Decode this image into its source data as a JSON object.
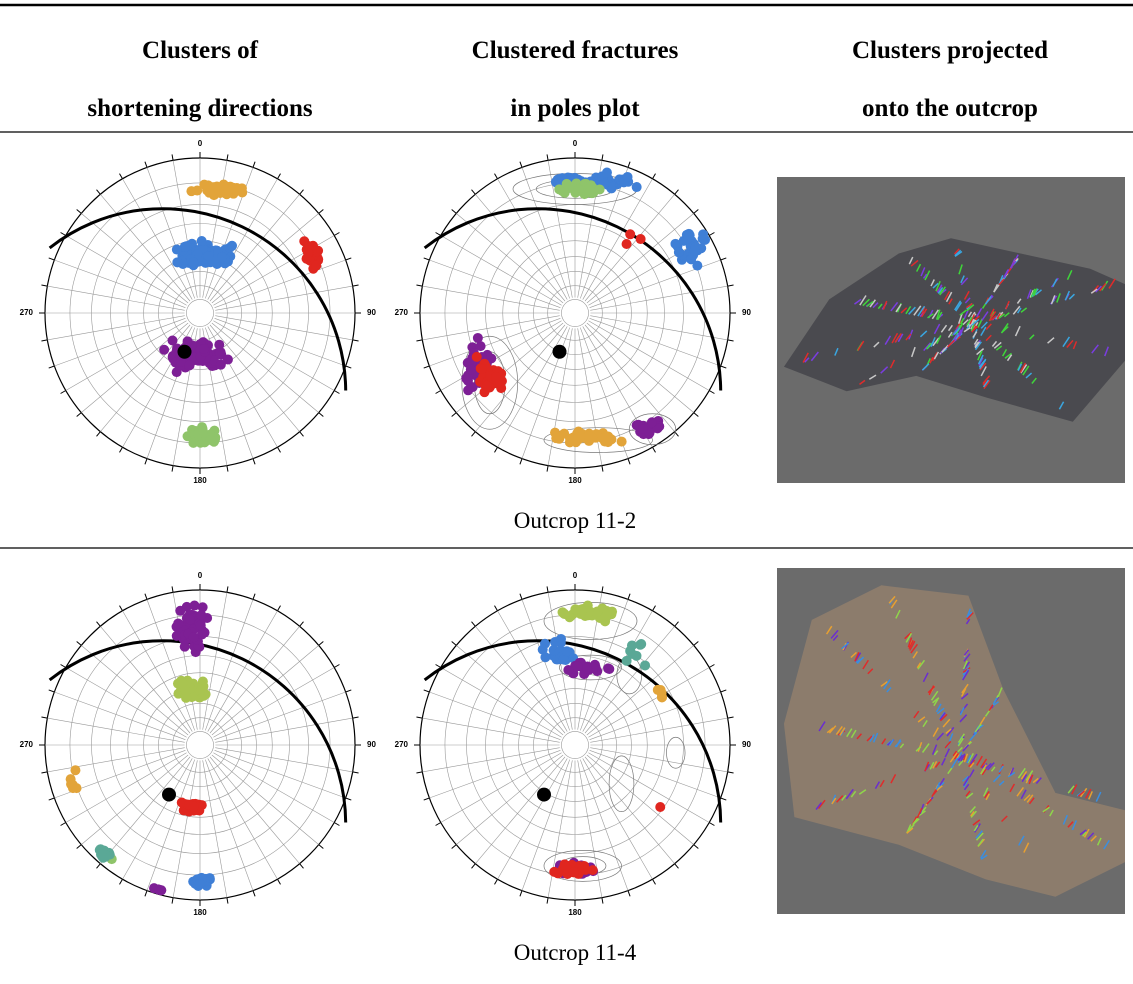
{
  "header": {
    "columns": [
      [
        "Clusters of",
        "shortening directions"
      ],
      [
        "Clustered fractures",
        "in poles plot"
      ],
      [
        "Clusters projected",
        "onto the outcrop"
      ]
    ]
  },
  "rows": [
    {
      "caption": "Outcrop 11-2",
      "plots": [
        {
          "labels": [
            "0",
            "90",
            "180",
            "270"
          ]
        },
        {
          "labels": [
            "0",
            "90",
            "180",
            "270"
          ]
        }
      ]
    },
    {
      "caption": "Outcrop 11-4",
      "plots": [
        {
          "labels": [
            "0",
            "90",
            "180",
            "270"
          ]
        },
        {
          "labels": [
            "0",
            "90",
            "180",
            "270"
          ]
        }
      ]
    }
  ]
}
